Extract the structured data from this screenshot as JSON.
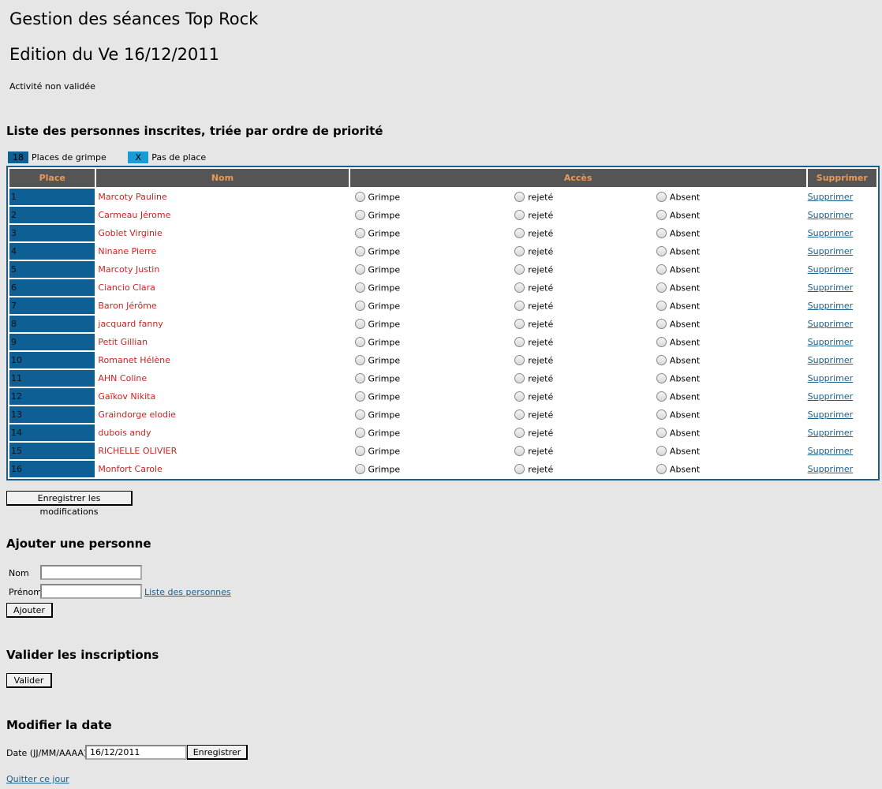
{
  "page": {
    "title": "Gestion des séances Top Rock",
    "edition": "Edition du Ve 16/12/2011",
    "status": "Activité non validée"
  },
  "list_section": {
    "heading": "Liste des personnes inscrites, triée par ordre de priorité",
    "legend": [
      {
        "box": "18",
        "label": "Places de grimpe",
        "color": "#0e5f93"
      },
      {
        "box": "X",
        "label": "Pas de place",
        "color": "#1a9ad6"
      }
    ],
    "columns": {
      "place": "Place",
      "nom": "Nom",
      "acces": "Accès",
      "supprimer": "Supprimer"
    },
    "option_grimpe": "Grimpe",
    "option_rejete": "rejeté",
    "option_absent": "Absent",
    "delete_link": "Supprimer",
    "rows": [
      {
        "place": "1",
        "nom": "Marcoty Pauline"
      },
      {
        "place": "2",
        "nom": "Carmeau Jérome"
      },
      {
        "place": "3",
        "nom": "Goblet Virginie"
      },
      {
        "place": "4",
        "nom": "Ninane Pierre"
      },
      {
        "place": "5",
        "nom": "Marcoty Justin"
      },
      {
        "place": "6",
        "nom": "Ciancio Clara"
      },
      {
        "place": "7",
        "nom": "Baron Jérôme"
      },
      {
        "place": "8",
        "nom": "jacquard fanny"
      },
      {
        "place": "9",
        "nom": "Petit Gillian"
      },
      {
        "place": "10",
        "nom": "Romanet Hélène"
      },
      {
        "place": "11",
        "nom": "AHN Coline"
      },
      {
        "place": "12",
        "nom": "Gaïkov Nikita"
      },
      {
        "place": "13",
        "nom": "Graindorge elodie"
      },
      {
        "place": "14",
        "nom": "dubois andy"
      },
      {
        "place": "15",
        "nom": "RICHELLE OLIVIER"
      },
      {
        "place": "16",
        "nom": "Monfort Carole"
      }
    ],
    "save_button": "Enregistrer les modifications"
  },
  "add_section": {
    "heading": "Ajouter une personne",
    "nom_label": "Nom",
    "nom_value": "",
    "prenom_label": "Prénom",
    "prenom_value": "",
    "list_link": "Liste des personnes",
    "add_button": "Ajouter"
  },
  "validate_section": {
    "heading": "Valider les inscriptions",
    "validate_button": "Valider"
  },
  "date_section": {
    "heading": "Modifier la date",
    "date_label": "Date (JJ/MM/AAAA)",
    "date_value": "16/12/2011",
    "save_button": "Enregistrer"
  },
  "footer": {
    "quit_link": "Quitter ce jour"
  }
}
